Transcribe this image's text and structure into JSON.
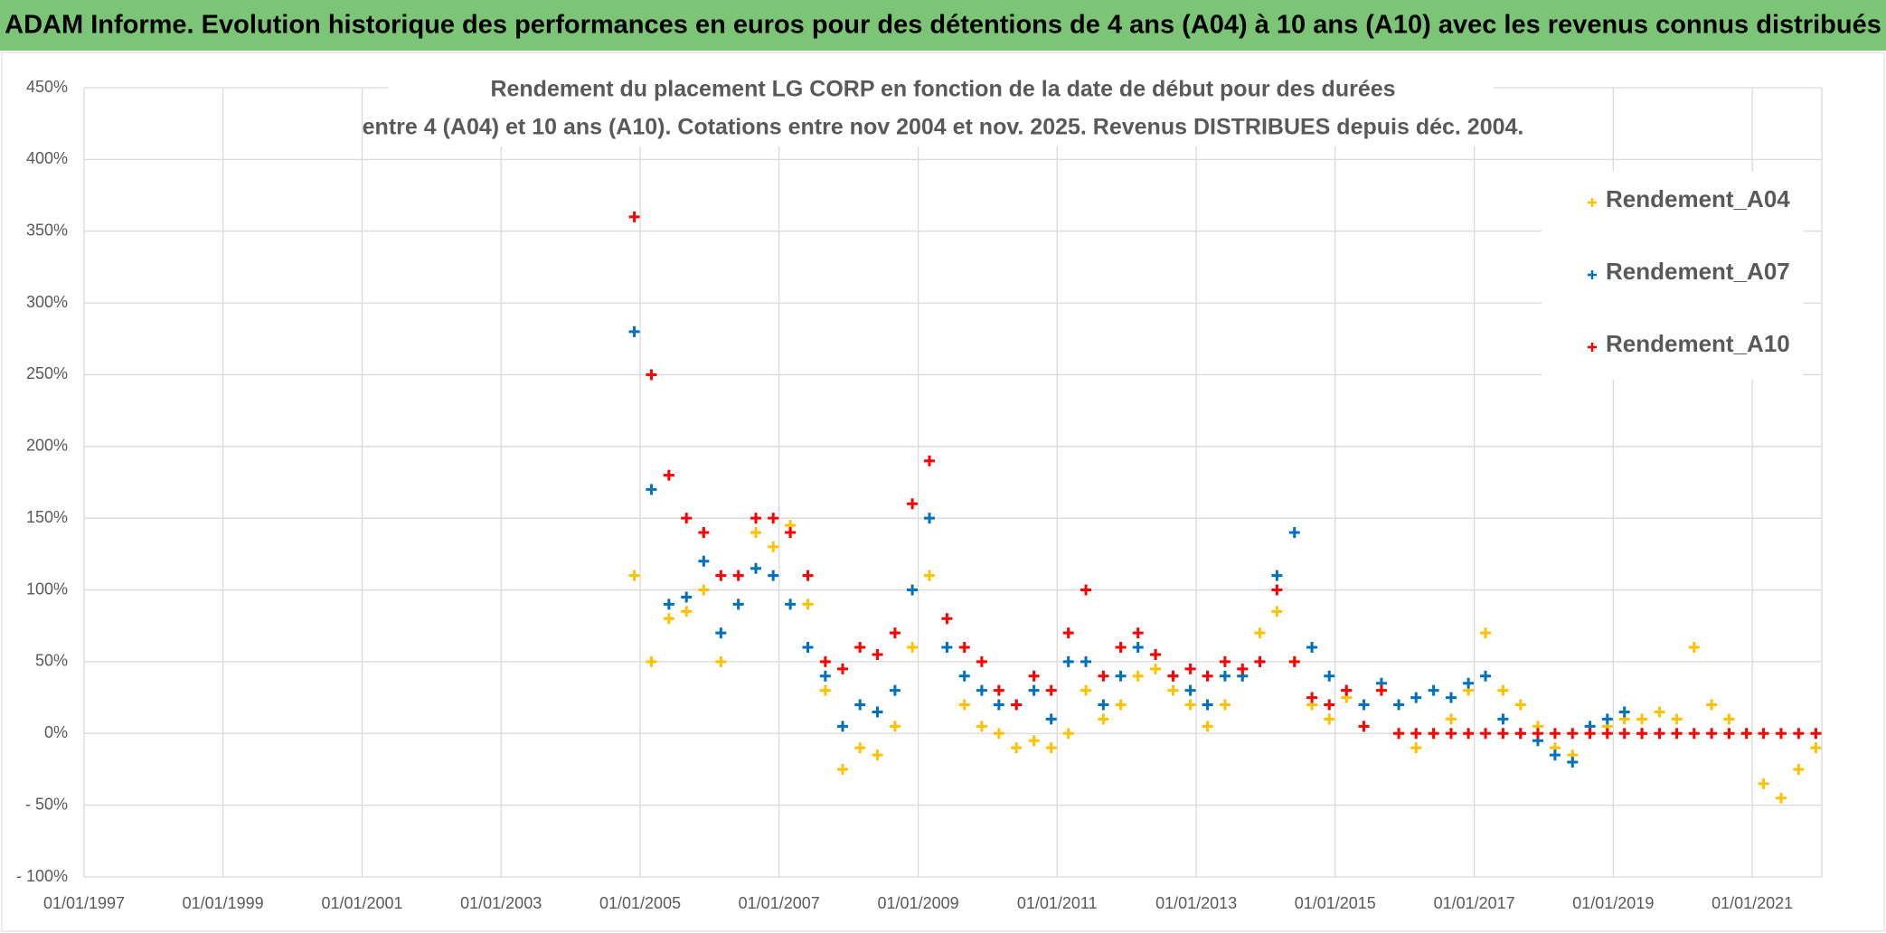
{
  "header": {
    "title": "ADAM Informe. Evolution historique des performances en euros pour des détentions de 4 ans (A04) à 10 ans (A10) avec les revenus connus distribués"
  },
  "chart_data": {
    "type": "scatter",
    "title": [
      "Rendement du placement LG CORP en fonction de la date de début pour des durées",
      "entre 4 (A04) et 10 ans (A10). Cotations entre nov 2004 et nov. 2025. Revenus DISTRIBUES depuis déc. 2004."
    ],
    "x": [
      "2004-12-01",
      "2005-03-01",
      "2005-06-01",
      "2005-09-01",
      "2005-12-01",
      "2006-03-01",
      "2006-06-01",
      "2006-09-01",
      "2006-12-01",
      "2007-03-01",
      "2007-06-01",
      "2007-09-01",
      "2007-12-01",
      "2008-03-01",
      "2008-06-01",
      "2008-09-01",
      "2008-12-01",
      "2009-03-01",
      "2009-06-01",
      "2009-09-01",
      "2009-12-01",
      "2010-03-01",
      "2010-06-01",
      "2010-09-01",
      "2010-12-01",
      "2011-03-01",
      "2011-06-01",
      "2011-09-01",
      "2011-12-01",
      "2012-03-01",
      "2012-06-01",
      "2012-09-01",
      "2012-12-01",
      "2013-03-01",
      "2013-06-01",
      "2013-09-01",
      "2013-12-01",
      "2014-03-01",
      "2014-06-01",
      "2014-09-01",
      "2014-12-01",
      "2015-03-01",
      "2015-06-01",
      "2015-09-01",
      "2015-12-01",
      "2016-03-01",
      "2016-06-01",
      "2016-09-01",
      "2016-12-01",
      "2017-03-01",
      "2017-06-01",
      "2017-09-01",
      "2017-12-01",
      "2018-03-01",
      "2018-06-01",
      "2018-09-01",
      "2018-12-01",
      "2019-03-01",
      "2019-06-01",
      "2019-09-01",
      "2019-12-01",
      "2020-03-01",
      "2020-06-01",
      "2020-09-01",
      "2020-12-01",
      "2021-03-01",
      "2021-06-01",
      "2021-09-01",
      "2021-12-01"
    ],
    "series": [
      {
        "name": "Rendement_A04",
        "color": "#ffc000",
        "values": [
          110,
          50,
          80,
          85,
          100,
          50,
          90,
          140,
          130,
          145,
          90,
          30,
          -25,
          -10,
          -15,
          5,
          60,
          110,
          60,
          20,
          5,
          0,
          -10,
          -5,
          -10,
          0,
          30,
          10,
          20,
          40,
          45,
          30,
          20,
          5,
          20,
          40,
          70,
          85,
          50,
          20,
          10,
          25,
          5,
          30,
          0,
          -10,
          0,
          10,
          30,
          70,
          30,
          20,
          5,
          -10,
          -15,
          0,
          5,
          10,
          10,
          15,
          10,
          60,
          20,
          10,
          0,
          -35,
          -45,
          -25,
          -10
        ]
      },
      {
        "name": "Rendement_A07",
        "color": "#0070c0",
        "values": [
          280,
          170,
          90,
          95,
          120,
          70,
          90,
          115,
          110,
          90,
          60,
          40,
          5,
          20,
          15,
          30,
          100,
          150,
          60,
          40,
          30,
          20,
          20,
          30,
          10,
          50,
          50,
          20,
          40,
          60,
          55,
          40,
          30,
          20,
          40,
          40,
          50,
          110,
          140,
          60,
          40,
          30,
          20,
          35,
          20,
          25,
          30,
          25,
          35,
          40,
          10,
          0,
          -5,
          -15,
          -20,
          5,
          10,
          15,
          0,
          null,
          null,
          null,
          null,
          null,
          null,
          null,
          null,
          null,
          null
        ]
      },
      {
        "name": "Rendement_A10",
        "color": "#ff0000",
        "values": [
          360,
          250,
          180,
          150,
          140,
          110,
          110,
          150,
          150,
          140,
          110,
          50,
          45,
          60,
          55,
          70,
          160,
          190,
          80,
          60,
          50,
          30,
          20,
          40,
          30,
          70,
          100,
          40,
          60,
          70,
          55,
          40,
          45,
          40,
          50,
          45,
          50,
          100,
          50,
          25,
          20,
          30,
          5,
          30,
          0,
          0,
          0,
          0,
          0,
          0,
          0,
          0,
          0,
          0,
          0,
          0,
          0,
          0,
          0,
          0,
          0,
          0,
          0,
          0,
          0,
          0,
          0,
          0,
          0
        ]
      }
    ],
    "xlim": [
      "1997-01-01",
      "2022-01-01"
    ],
    "xticks": [
      {
        "value": "1997-01-01",
        "label": "01/01/1997"
      },
      {
        "value": "1999-01-01",
        "label": "01/01/1999"
      },
      {
        "value": "2001-01-01",
        "label": "01/01/2001"
      },
      {
        "value": "2003-01-01",
        "label": "01/01/2003"
      },
      {
        "value": "2005-01-01",
        "label": "01/01/2005"
      },
      {
        "value": "2007-01-01",
        "label": "01/01/2007"
      },
      {
        "value": "2009-01-01",
        "label": "01/01/2009"
      },
      {
        "value": "2011-01-01",
        "label": "01/01/2011"
      },
      {
        "value": "2013-01-01",
        "label": "01/01/2013"
      },
      {
        "value": "2015-01-01",
        "label": "01/01/2015"
      },
      {
        "value": "2017-01-01",
        "label": "01/01/2017"
      },
      {
        "value": "2019-01-01",
        "label": "01/01/2019"
      },
      {
        "value": "2021-01-01",
        "label": "01/01/2021"
      }
    ],
    "ylim": [
      -100,
      450
    ],
    "yticks": [
      {
        "value": -100,
        "label": "- 100%"
      },
      {
        "value": -50,
        "label": "- 50%"
      },
      {
        "value": 0,
        "label": "0%"
      },
      {
        "value": 50,
        "label": "50%"
      },
      {
        "value": 100,
        "label": "100%"
      },
      {
        "value": 150,
        "label": "150%"
      },
      {
        "value": 200,
        "label": "200%"
      },
      {
        "value": 250,
        "label": "250%"
      },
      {
        "value": 300,
        "label": "300%"
      },
      {
        "value": 350,
        "label": "350%"
      },
      {
        "value": 400,
        "label": "400%"
      },
      {
        "value": 450,
        "label": "450%"
      }
    ],
    "grid": true,
    "legend": "right"
  }
}
